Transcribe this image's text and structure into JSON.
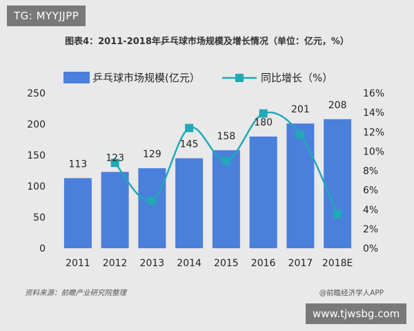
{
  "watermark_top": "TG: MYYJJPP",
  "watermark_bottom": "www.tjwsbg.com",
  "title": "图表4：2011-2018年乒乓球市场规模及增长情况（单位：亿元，%）",
  "legend": {
    "bar": "乒乓球市场规模(亿元）",
    "line": "同比增长（%）"
  },
  "source_left": "资料来源：前瞻产业研究院整理",
  "source_right": "@前瞻经济学人APP",
  "colors": {
    "bar": "#4a7fdc",
    "line": "#22a8b6"
  },
  "chart_data": {
    "type": "bar",
    "categories": [
      "2011",
      "2012",
      "2013",
      "2014",
      "2015",
      "2016",
      "2017",
      "2018E"
    ],
    "series": [
      {
        "name": "乒乓球市场规模(亿元）",
        "type": "bar",
        "axis": "left",
        "values": [
          113,
          123,
          129,
          145,
          158,
          180,
          201,
          208
        ]
      },
      {
        "name": "同比增长（%）",
        "type": "line",
        "axis": "right",
        "values": [
          null,
          8.8,
          4.9,
          12.4,
          9.0,
          13.9,
          11.7,
          3.5
        ]
      }
    ],
    "ylim_left": [
      0,
      250
    ],
    "yticks_left": [
      0,
      50,
      100,
      150,
      200,
      250
    ],
    "ylim_right": [
      0,
      16
    ],
    "yticks_right": [
      "0%",
      "2%",
      "4%",
      "6%",
      "8%",
      "10%",
      "12%",
      "14%",
      "16%"
    ],
    "data_labels": [
      "113",
      "123",
      "129",
      "145",
      "158",
      "180",
      "201",
      "208"
    ],
    "legend_position": "top-left",
    "grid": false
  }
}
